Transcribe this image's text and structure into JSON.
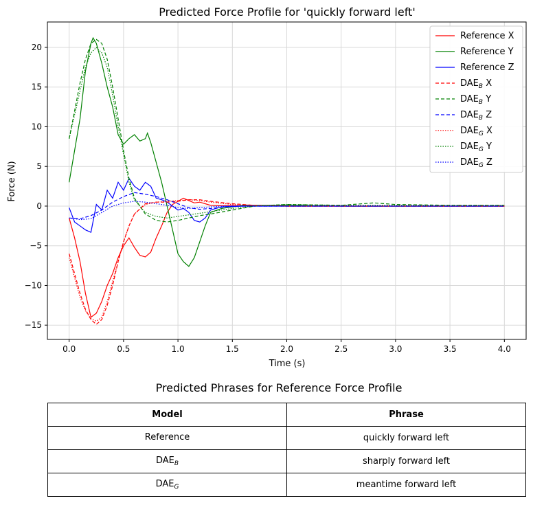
{
  "chart_data": {
    "type": "line",
    "title": "Predicted Force Profile for 'quickly forward left'",
    "xlabel": "Time (s)",
    "ylabel": "Force (N)",
    "xlim": [
      -0.2,
      4.2
    ],
    "ylim": [
      -16.8,
      23.2
    ],
    "xticks": [
      0.0,
      0.5,
      1.0,
      1.5,
      2.0,
      2.5,
      3.0,
      3.5,
      4.0
    ],
    "yticks": [
      -15,
      -10,
      -5,
      0,
      5,
      10,
      15,
      20
    ],
    "xtick_labels": [
      "0.0",
      "0.5",
      "1.0",
      "1.5",
      "2.0",
      "2.5",
      "3.0",
      "3.5",
      "4.0"
    ],
    "ytick_labels": [
      "−15",
      "−10",
      "−5",
      "0",
      "5",
      "10",
      "15",
      "20"
    ],
    "grid": true,
    "legend_position": "top-right",
    "series": [
      {
        "name": "Reference X",
        "color": "#ff0000",
        "dash": "solid",
        "points": [
          [
            0,
            -1.5
          ],
          [
            0.05,
            -4
          ],
          [
            0.1,
            -7
          ],
          [
            0.15,
            -11
          ],
          [
            0.2,
            -14
          ],
          [
            0.25,
            -13.5
          ],
          [
            0.3,
            -12
          ],
          [
            0.35,
            -10
          ],
          [
            0.4,
            -8.5
          ],
          [
            0.45,
            -6.5
          ],
          [
            0.5,
            -5
          ],
          [
            0.55,
            -4
          ],
          [
            0.6,
            -5.2
          ],
          [
            0.65,
            -6.2
          ],
          [
            0.7,
            -6.4
          ],
          [
            0.75,
            -5.8
          ],
          [
            0.8,
            -4
          ],
          [
            0.85,
            -2.5
          ],
          [
            0.9,
            -0.8
          ],
          [
            0.95,
            0.2
          ],
          [
            1.0,
            0.6
          ],
          [
            1.05,
            1.0
          ],
          [
            1.1,
            0.7
          ],
          [
            1.15,
            0.4
          ],
          [
            1.2,
            0.5
          ],
          [
            1.25,
            0.3
          ],
          [
            1.3,
            0.1
          ],
          [
            1.4,
            0.05
          ],
          [
            1.6,
            0.05
          ],
          [
            2.0,
            0.0
          ],
          [
            2.5,
            0.0
          ],
          [
            3.0,
            0.0
          ],
          [
            3.5,
            0.0
          ],
          [
            4.0,
            0.0
          ]
        ]
      },
      {
        "name": "Reference Y",
        "color": "#008000",
        "dash": "solid",
        "points": [
          [
            0,
            3
          ],
          [
            0.05,
            7
          ],
          [
            0.1,
            11
          ],
          [
            0.15,
            17
          ],
          [
            0.2,
            20.5
          ],
          [
            0.22,
            21.2
          ],
          [
            0.25,
            20.5
          ],
          [
            0.3,
            18
          ],
          [
            0.35,
            15
          ],
          [
            0.4,
            12.5
          ],
          [
            0.45,
            9
          ],
          [
            0.5,
            7.8
          ],
          [
            0.55,
            8.5
          ],
          [
            0.6,
            9
          ],
          [
            0.65,
            8.2
          ],
          [
            0.7,
            8.5
          ],
          [
            0.72,
            9.2
          ],
          [
            0.75,
            8
          ],
          [
            0.8,
            5.5
          ],
          [
            0.85,
            3
          ],
          [
            0.9,
            0
          ],
          [
            0.95,
            -3
          ],
          [
            1.0,
            -6
          ],
          [
            1.05,
            -7
          ],
          [
            1.1,
            -7.6
          ],
          [
            1.15,
            -6.5
          ],
          [
            1.2,
            -4.5
          ],
          [
            1.25,
            -2.5
          ],
          [
            1.3,
            -0.8
          ],
          [
            1.4,
            -0.3
          ],
          [
            1.6,
            0.1
          ],
          [
            2.0,
            0.1
          ],
          [
            2.5,
            0.0
          ],
          [
            3.0,
            0.0
          ],
          [
            3.5,
            0.0
          ],
          [
            4.0,
            0.0
          ]
        ]
      },
      {
        "name": "Reference Z",
        "color": "#0000ff",
        "dash": "solid",
        "points": [
          [
            0,
            -0.2
          ],
          [
            0.05,
            -2
          ],
          [
            0.1,
            -2.5
          ],
          [
            0.15,
            -3
          ],
          [
            0.2,
            -3.3
          ],
          [
            0.25,
            0.2
          ],
          [
            0.3,
            -0.5
          ],
          [
            0.35,
            2
          ],
          [
            0.4,
            1
          ],
          [
            0.45,
            3
          ],
          [
            0.5,
            2
          ],
          [
            0.55,
            3.5
          ],
          [
            0.6,
            2.5
          ],
          [
            0.65,
            2
          ],
          [
            0.7,
            3
          ],
          [
            0.75,
            2.5
          ],
          [
            0.8,
            1
          ],
          [
            0.85,
            0.8
          ],
          [
            0.9,
            0.5
          ],
          [
            1.0,
            -0.5
          ],
          [
            1.05,
            -0.3
          ],
          [
            1.1,
            -0.8
          ],
          [
            1.15,
            -1.8
          ],
          [
            1.2,
            -2
          ],
          [
            1.25,
            -1.5
          ],
          [
            1.3,
            -0.5
          ],
          [
            1.4,
            -0.1
          ],
          [
            1.6,
            0.0
          ],
          [
            2.0,
            0.0
          ],
          [
            2.5,
            0.0
          ],
          [
            3.0,
            0.0
          ],
          [
            3.5,
            0.0
          ],
          [
            4.0,
            0.0
          ]
        ]
      },
      {
        "name": "DAE_B X",
        "color": "#ff0000",
        "dash": "dashed",
        "points": [
          [
            0,
            -6
          ],
          [
            0.05,
            -8.5
          ],
          [
            0.1,
            -11
          ],
          [
            0.15,
            -13
          ],
          [
            0.2,
            -14.3
          ],
          [
            0.25,
            -14.9
          ],
          [
            0.3,
            -14.3
          ],
          [
            0.35,
            -12.5
          ],
          [
            0.4,
            -10
          ],
          [
            0.45,
            -7
          ],
          [
            0.5,
            -4.5
          ],
          [
            0.55,
            -2.5
          ],
          [
            0.6,
            -1
          ],
          [
            0.7,
            0.3
          ],
          [
            0.8,
            0.5
          ],
          [
            0.9,
            0.5
          ],
          [
            1.0,
            0.6
          ],
          [
            1.1,
            0.8
          ],
          [
            1.2,
            0.8
          ],
          [
            1.3,
            0.6
          ],
          [
            1.5,
            0.3
          ],
          [
            1.7,
            0.1
          ],
          [
            2.0,
            0.0
          ],
          [
            2.5,
            0.0
          ],
          [
            3.0,
            0.0
          ],
          [
            3.5,
            0.0
          ],
          [
            4.0,
            0.0
          ]
        ]
      },
      {
        "name": "DAE_B Y",
        "color": "#008000",
        "dash": "dashed",
        "points": [
          [
            0,
            8.5
          ],
          [
            0.05,
            12
          ],
          [
            0.1,
            15.5
          ],
          [
            0.15,
            18.5
          ],
          [
            0.2,
            20.5
          ],
          [
            0.25,
            21
          ],
          [
            0.3,
            20.5
          ],
          [
            0.35,
            18.5
          ],
          [
            0.4,
            15
          ],
          [
            0.45,
            11
          ],
          [
            0.5,
            7
          ],
          [
            0.55,
            3.5
          ],
          [
            0.6,
            1
          ],
          [
            0.7,
            -1
          ],
          [
            0.8,
            -1.8
          ],
          [
            0.9,
            -2
          ],
          [
            1.0,
            -1.8
          ],
          [
            1.1,
            -1.5
          ],
          [
            1.2,
            -1.2
          ],
          [
            1.3,
            -1.0
          ],
          [
            1.5,
            -0.5
          ],
          [
            1.7,
            0.0
          ],
          [
            2.0,
            0.2
          ],
          [
            2.5,
            0.1
          ],
          [
            2.8,
            0.4
          ],
          [
            3.0,
            0.2
          ],
          [
            3.5,
            0.1
          ],
          [
            4.0,
            0.1
          ]
        ]
      },
      {
        "name": "DAE_B Z",
        "color": "#0000ff",
        "dash": "dashed",
        "points": [
          [
            0,
            -1.5
          ],
          [
            0.1,
            -1.6
          ],
          [
            0.2,
            -1.2
          ],
          [
            0.3,
            -0.5
          ],
          [
            0.4,
            0.5
          ],
          [
            0.5,
            1.2
          ],
          [
            0.6,
            1.7
          ],
          [
            0.7,
            1.5
          ],
          [
            0.8,
            1.2
          ],
          [
            0.9,
            0.8
          ],
          [
            1.0,
            0.3
          ],
          [
            1.1,
            -0.2
          ],
          [
            1.2,
            -0.4
          ],
          [
            1.3,
            -0.3
          ],
          [
            1.5,
            0.0
          ],
          [
            2.0,
            0.0
          ],
          [
            2.5,
            0.0
          ],
          [
            3.0,
            0.0
          ],
          [
            3.5,
            0.0
          ],
          [
            4.0,
            0.0
          ]
        ]
      },
      {
        "name": "DAE_G X",
        "color": "#ff0000",
        "dash": "dotted",
        "points": [
          [
            0,
            -6.5
          ],
          [
            0.05,
            -9
          ],
          [
            0.1,
            -11.5
          ],
          [
            0.15,
            -13.2
          ],
          [
            0.2,
            -14.2
          ],
          [
            0.25,
            -14.5
          ],
          [
            0.3,
            -14
          ],
          [
            0.35,
            -12
          ],
          [
            0.4,
            -9.5
          ],
          [
            0.45,
            -7
          ],
          [
            0.5,
            -4.5
          ],
          [
            0.55,
            -2.5
          ],
          [
            0.6,
            -1
          ],
          [
            0.7,
            0.2
          ],
          [
            0.8,
            0.5
          ],
          [
            0.9,
            0.6
          ],
          [
            1.0,
            0.7
          ],
          [
            1.1,
            0.8
          ],
          [
            1.2,
            0.7
          ],
          [
            1.3,
            0.5
          ],
          [
            1.5,
            0.2
          ],
          [
            1.7,
            0.1
          ],
          [
            2.0,
            0.0
          ],
          [
            2.5,
            0.0
          ],
          [
            3.0,
            0.0
          ],
          [
            3.5,
            0.0
          ],
          [
            4.0,
            0.0
          ]
        ]
      },
      {
        "name": "DAE_G Y",
        "color": "#008000",
        "dash": "dotted",
        "points": [
          [
            0,
            8.5
          ],
          [
            0.05,
            11.5
          ],
          [
            0.1,
            14.5
          ],
          [
            0.15,
            17.5
          ],
          [
            0.2,
            19.3
          ],
          [
            0.25,
            20
          ],
          [
            0.3,
            19.3
          ],
          [
            0.35,
            17.5
          ],
          [
            0.4,
            14
          ],
          [
            0.45,
            10
          ],
          [
            0.5,
            6.5
          ],
          [
            0.55,
            3
          ],
          [
            0.6,
            0.8
          ],
          [
            0.7,
            -0.8
          ],
          [
            0.8,
            -1.3
          ],
          [
            0.9,
            -1.5
          ],
          [
            1.0,
            -1.3
          ],
          [
            1.1,
            -1.1
          ],
          [
            1.2,
            -0.9
          ],
          [
            1.3,
            -0.7
          ],
          [
            1.5,
            -0.3
          ],
          [
            1.7,
            0.0
          ],
          [
            2.0,
            0.2
          ],
          [
            2.5,
            0.1
          ],
          [
            3.0,
            0.1
          ],
          [
            3.5,
            0.1
          ],
          [
            4.0,
            0.1
          ]
        ]
      },
      {
        "name": "DAE_G Z",
        "color": "#0000ff",
        "dash": "dotted",
        "points": [
          [
            0,
            -1.5
          ],
          [
            0.1,
            -1.7
          ],
          [
            0.2,
            -1.6
          ],
          [
            0.3,
            -0.8
          ],
          [
            0.4,
            0.0
          ],
          [
            0.5,
            0.4
          ],
          [
            0.6,
            0.6
          ],
          [
            0.7,
            0.5
          ],
          [
            0.8,
            0.3
          ],
          [
            0.9,
            0.1
          ],
          [
            1.0,
            -0.2
          ],
          [
            1.1,
            -0.3
          ],
          [
            1.2,
            -0.2
          ],
          [
            1.4,
            0.0
          ],
          [
            2.0,
            0.0
          ],
          [
            2.5,
            0.0
          ],
          [
            3.0,
            0.0
          ],
          [
            3.5,
            0.0
          ],
          [
            4.0,
            0.0
          ]
        ]
      }
    ]
  },
  "legend": {
    "entries": [
      {
        "base": "Reference X",
        "sub": "",
        "suffix": ""
      },
      {
        "base": "Reference Y",
        "sub": "",
        "suffix": ""
      },
      {
        "base": "Reference Z",
        "sub": "",
        "suffix": ""
      },
      {
        "base": "DAE",
        "sub": "B",
        "suffix": " X"
      },
      {
        "base": "DAE",
        "sub": "B",
        "suffix": " Y"
      },
      {
        "base": "DAE",
        "sub": "B",
        "suffix": " Z"
      },
      {
        "base": "DAE",
        "sub": "G",
        "suffix": " X"
      },
      {
        "base": "DAE",
        "sub": "G",
        "suffix": " Y"
      },
      {
        "base": "DAE",
        "sub": "G",
        "suffix": " Z"
      }
    ]
  },
  "phrase_table": {
    "title": "Predicted Phrases for Reference Force Profile",
    "headers": {
      "model": "Model",
      "phrase": "Phrase"
    },
    "rows": [
      {
        "model_base": "Reference",
        "model_sub": "",
        "phrase": "quickly forward left"
      },
      {
        "model_base": "DAE",
        "model_sub": "B",
        "phrase": "sharply forward left"
      },
      {
        "model_base": "DAE",
        "model_sub": "G",
        "phrase": "meantime forward left"
      }
    ]
  }
}
